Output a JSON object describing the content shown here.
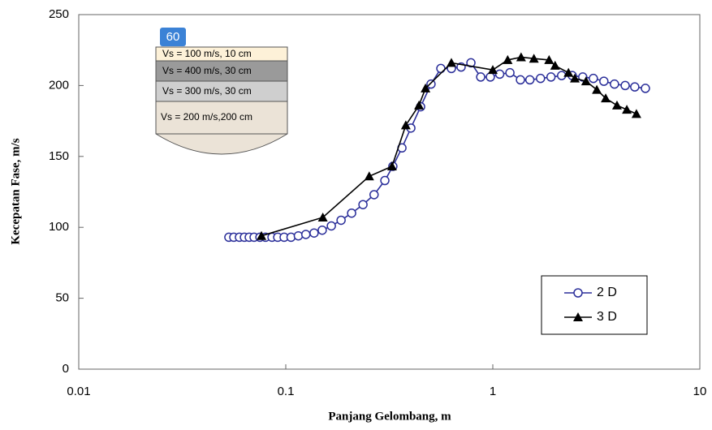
{
  "chart_data": {
    "type": "line",
    "x_label": "Panjang Gelombang, m",
    "y_label": "Kecepatan Fase, m/s",
    "xscale": "log",
    "xlim": [
      0.01,
      10
    ],
    "xticks": [
      0.01,
      0.1,
      1,
      10
    ],
    "ylim": [
      0,
      250
    ],
    "yticks": [
      0,
      50,
      100,
      150,
      200,
      250
    ],
    "legend": "lower right",
    "badge": "60",
    "annotations": [
      "Vs = 100 m/s, 10 cm",
      "Vs = 400 m/s, 30 cm",
      "Vs = 300 m/s, 30 cm",
      "Vs = 200 m/s,200 cm"
    ],
    "series": [
      {
        "name": "2 D",
        "color": "#2b2f9a",
        "marker": "circle",
        "x": [
          0.0531,
          0.0561,
          0.0597,
          0.0631,
          0.0666,
          0.0703,
          0.075,
          0.0798,
          0.0858,
          0.0914,
          0.0982,
          0.106,
          0.115,
          0.125,
          0.137,
          0.15,
          0.166,
          0.185,
          0.208,
          0.236,
          0.267,
          0.301,
          0.329,
          0.364,
          0.402,
          0.448,
          0.503,
          0.561,
          0.631,
          0.703,
          0.784,
          0.874,
          0.973,
          1.08,
          1.21,
          1.36,
          1.51,
          1.7,
          1.91,
          2.15,
          2.42,
          2.72,
          3.06,
          3.44,
          3.87,
          4.36,
          4.85,
          5.46
        ],
        "values": [
          93,
          93,
          93,
          93,
          93,
          93,
          93,
          93,
          93,
          93,
          93,
          93,
          94,
          95,
          96,
          98,
          101,
          105,
          110,
          116,
          123,
          133,
          143,
          156,
          170,
          185,
          201,
          212,
          212,
          213,
          216,
          206,
          206,
          208,
          209,
          204,
          204,
          205,
          206,
          207,
          207,
          206,
          205,
          203,
          201,
          200,
          199,
          198
        ]
      },
      {
        "name": "3 D",
        "color": "#000000",
        "marker": "triangle",
        "x": [
          0.0763,
          0.151,
          0.253,
          0.326,
          0.38,
          0.44,
          0.473,
          0.631,
          1.0,
          1.18,
          1.37,
          1.58,
          1.87,
          2.0,
          2.32,
          2.49,
          2.82,
          3.18,
          3.51,
          3.98,
          4.44,
          4.94
        ],
        "values": [
          94,
          107,
          136,
          143,
          172,
          186,
          198,
          216,
          211,
          218,
          220,
          219,
          218,
          214,
          209,
          205,
          203,
          197,
          191,
          186,
          183,
          180
        ]
      }
    ]
  }
}
